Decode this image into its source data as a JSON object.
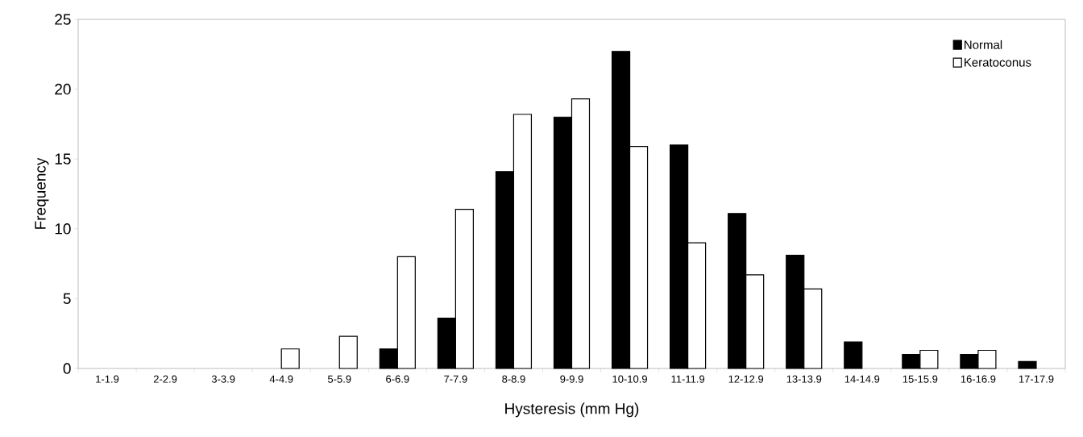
{
  "chart_data": {
    "type": "bar",
    "xlabel": "Hysteresis (mm Hg)",
    "ylabel": "Frequency",
    "categories": [
      "1-1.9",
      "2-2.9",
      "3-3.9",
      "4-4.9",
      "5-5.9",
      "6-6.9",
      "7-7.9",
      "8-8.9",
      "9-9.9",
      "10-10.9",
      "11-11.9",
      "12-12.9",
      "13-13.9",
      "14-14.9",
      "15-15.9",
      "16-16.9",
      "17-17.9"
    ],
    "series": [
      {
        "name": "Normal",
        "color": "#000000",
        "values": [
          null,
          null,
          null,
          null,
          null,
          1.4,
          3.6,
          14.1,
          18,
          22.7,
          16,
          11.1,
          8.1,
          1.9,
          1,
          1,
          0.5
        ]
      },
      {
        "name": "Keratoconus",
        "color": "#ffffff",
        "values": [
          null,
          null,
          null,
          1.4,
          2.3,
          8,
          11.4,
          18.2,
          19.3,
          15.9,
          9,
          6.7,
          5.7,
          null,
          1.3,
          1.3,
          null
        ]
      }
    ],
    "ylim": [
      0,
      25
    ],
    "yticks": [
      0,
      5,
      10,
      15,
      20,
      25
    ],
    "legend": "top right"
  }
}
